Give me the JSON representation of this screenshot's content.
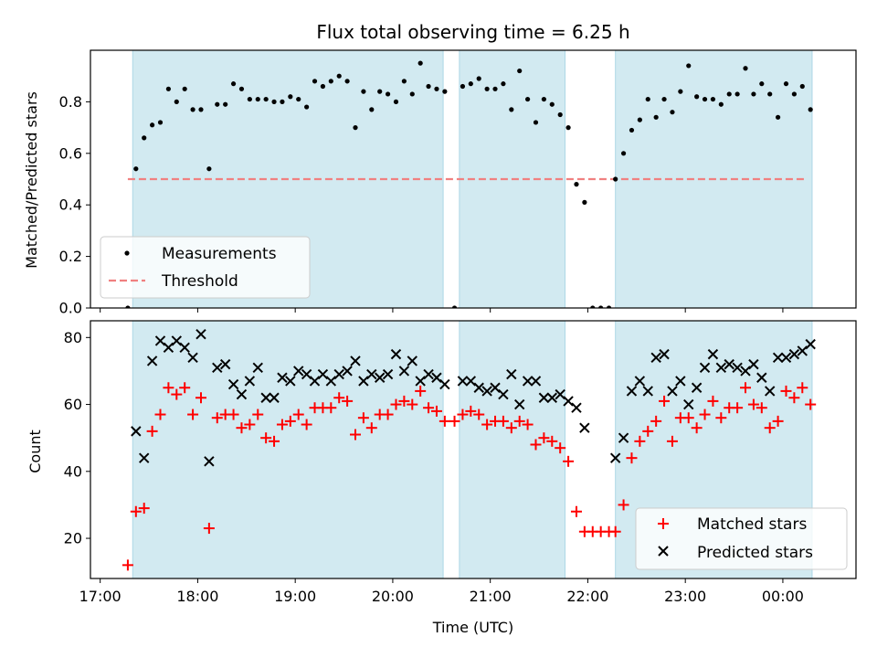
{
  "chart_data": [
    {
      "type": "scatter",
      "title": "Flux total observing time = 6.25 h",
      "xlabel": "",
      "ylabel": "Matched/Predicted stars",
      "ylim": [
        0,
        1.0
      ],
      "yticks": [
        "0.0",
        "0.2",
        "0.4",
        "0.6",
        "0.8"
      ],
      "xlim": [
        "16:54",
        "00:45"
      ],
      "grid": false,
      "legend_position": "lower-left",
      "observing_windows": [
        [
          "17:20",
          "20:31"
        ],
        [
          "20:41",
          "21:46"
        ],
        [
          "22:17",
          "00:18"
        ]
      ],
      "threshold": {
        "name": "Threshold",
        "value": 0.5,
        "x_range": [
          "17:17",
          "00:15"
        ],
        "color": "#f08080"
      },
      "series": [
        {
          "name": "Measurements",
          "color": "#000000",
          "points": [
            [
              "17:17",
              0.0
            ],
            [
              "17:22",
              0.54
            ],
            [
              "17:27",
              0.66
            ],
            [
              "17:32",
              0.71
            ],
            [
              "17:37",
              0.72
            ],
            [
              "17:42",
              0.85
            ],
            [
              "17:47",
              0.8
            ],
            [
              "17:52",
              0.85
            ],
            [
              "17:57",
              0.77
            ],
            [
              "18:02",
              0.77
            ],
            [
              "18:07",
              0.54
            ],
            [
              "18:12",
              0.79
            ],
            [
              "18:17",
              0.79
            ],
            [
              "18:22",
              0.87
            ],
            [
              "18:27",
              0.85
            ],
            [
              "18:32",
              0.81
            ],
            [
              "18:37",
              0.81
            ],
            [
              "18:42",
              0.81
            ],
            [
              "18:47",
              0.8
            ],
            [
              "18:52",
              0.8
            ],
            [
              "18:57",
              0.82
            ],
            [
              "19:02",
              0.81
            ],
            [
              "19:07",
              0.78
            ],
            [
              "19:12",
              0.88
            ],
            [
              "19:17",
              0.86
            ],
            [
              "19:22",
              0.88
            ],
            [
              "19:27",
              0.9
            ],
            [
              "19:32",
              0.88
            ],
            [
              "19:37",
              0.7
            ],
            [
              "19:42",
              0.84
            ],
            [
              "19:47",
              0.77
            ],
            [
              "19:52",
              0.84
            ],
            [
              "19:57",
              0.83
            ],
            [
              "20:02",
              0.8
            ],
            [
              "20:07",
              0.88
            ],
            [
              "20:12",
              0.83
            ],
            [
              "20:17",
              0.95
            ],
            [
              "20:22",
              0.86
            ],
            [
              "20:27",
              0.85
            ],
            [
              "20:32",
              0.84
            ],
            [
              "20:38",
              0.0
            ],
            [
              "20:43",
              0.86
            ],
            [
              "20:48",
              0.87
            ],
            [
              "20:53",
              0.89
            ],
            [
              "20:58",
              0.85
            ],
            [
              "21:03",
              0.85
            ],
            [
              "21:08",
              0.87
            ],
            [
              "21:13",
              0.77
            ],
            [
              "21:18",
              0.92
            ],
            [
              "21:23",
              0.81
            ],
            [
              "21:28",
              0.72
            ],
            [
              "21:33",
              0.81
            ],
            [
              "21:38",
              0.79
            ],
            [
              "21:43",
              0.75
            ],
            [
              "21:48",
              0.7
            ],
            [
              "21:53",
              0.48
            ],
            [
              "21:58",
              0.41
            ],
            [
              "22:03",
              0.0
            ],
            [
              "22:08",
              0.0
            ],
            [
              "22:13",
              0.0
            ],
            [
              "22:17",
              0.5
            ],
            [
              "22:22",
              0.6
            ],
            [
              "22:27",
              0.69
            ],
            [
              "22:32",
              0.73
            ],
            [
              "22:37",
              0.81
            ],
            [
              "22:42",
              0.74
            ],
            [
              "22:47",
              0.81
            ],
            [
              "22:52",
              0.76
            ],
            [
              "22:57",
              0.84
            ],
            [
              "23:02",
              0.94
            ],
            [
              "23:07",
              0.82
            ],
            [
              "23:12",
              0.81
            ],
            [
              "23:17",
              0.81
            ],
            [
              "23:22",
              0.79
            ],
            [
              "23:27",
              0.83
            ],
            [
              "23:32",
              0.83
            ],
            [
              "23:37",
              0.93
            ],
            [
              "23:42",
              0.83
            ],
            [
              "23:47",
              0.87
            ],
            [
              "23:52",
              0.83
            ],
            [
              "23:57",
              0.74
            ],
            [
              "00:02",
              0.87
            ],
            [
              "00:07",
              0.83
            ],
            [
              "00:12",
              0.86
            ],
            [
              "00:17",
              0.77
            ]
          ]
        }
      ]
    },
    {
      "type": "scatter",
      "title": "",
      "xlabel": "Time (UTC)",
      "ylabel": "Count",
      "ylim": [
        8,
        85
      ],
      "yticks": [
        "20",
        "40",
        "60",
        "80"
      ],
      "xlim": [
        "16:54",
        "00:45"
      ],
      "xticks": [
        "17:00",
        "18:00",
        "19:00",
        "20:00",
        "21:00",
        "22:00",
        "23:00",
        "00:00"
      ],
      "grid": false,
      "legend_position": "lower-right",
      "observing_windows": [
        [
          "17:20",
          "20:31"
        ],
        [
          "20:41",
          "21:46"
        ],
        [
          "22:17",
          "00:18"
        ]
      ],
      "series": [
        {
          "name": "Matched stars",
          "marker": "plus",
          "color": "#ff0000",
          "points": [
            [
              "17:17",
              12
            ],
            [
              "17:22",
              28
            ],
            [
              "17:27",
              29
            ],
            [
              "17:32",
              52
            ],
            [
              "17:37",
              57
            ],
            [
              "17:42",
              65
            ],
            [
              "17:47",
              63
            ],
            [
              "17:52",
              65
            ],
            [
              "17:57",
              57
            ],
            [
              "18:02",
              62
            ],
            [
              "18:07",
              23
            ],
            [
              "18:12",
              56
            ],
            [
              "18:17",
              57
            ],
            [
              "18:22",
              57
            ],
            [
              "18:27",
              53
            ],
            [
              "18:32",
              54
            ],
            [
              "18:37",
              57
            ],
            [
              "18:42",
              50
            ],
            [
              "18:47",
              49
            ],
            [
              "18:52",
              54
            ],
            [
              "18:57",
              55
            ],
            [
              "19:02",
              57
            ],
            [
              "19:07",
              54
            ],
            [
              "19:12",
              59
            ],
            [
              "19:17",
              59
            ],
            [
              "19:22",
              59
            ],
            [
              "19:27",
              62
            ],
            [
              "19:32",
              61
            ],
            [
              "19:37",
              51
            ],
            [
              "19:42",
              56
            ],
            [
              "19:47",
              53
            ],
            [
              "19:52",
              57
            ],
            [
              "19:57",
              57
            ],
            [
              "20:02",
              60
            ],
            [
              "20:07",
              61
            ],
            [
              "20:12",
              60
            ],
            [
              "20:17",
              64
            ],
            [
              "20:22",
              59
            ],
            [
              "20:27",
              58
            ],
            [
              "20:32",
              55
            ],
            [
              "20:38",
              55
            ],
            [
              "20:43",
              57
            ],
            [
              "20:48",
              58
            ],
            [
              "20:53",
              57
            ],
            [
              "20:58",
              54
            ],
            [
              "21:03",
              55
            ],
            [
              "21:08",
              55
            ],
            [
              "21:13",
              53
            ],
            [
              "21:18",
              55
            ],
            [
              "21:23",
              54
            ],
            [
              "21:28",
              48
            ],
            [
              "21:33",
              50
            ],
            [
              "21:38",
              49
            ],
            [
              "21:43",
              47
            ],
            [
              "21:48",
              43
            ],
            [
              "21:53",
              28
            ],
            [
              "21:58",
              22
            ],
            [
              "22:03",
              22
            ],
            [
              "22:08",
              22
            ],
            [
              "22:13",
              22
            ],
            [
              "22:17",
              22
            ],
            [
              "22:22",
              30
            ],
            [
              "22:27",
              44
            ],
            [
              "22:32",
              49
            ],
            [
              "22:37",
              52
            ],
            [
              "22:42",
              55
            ],
            [
              "22:47",
              61
            ],
            [
              "22:52",
              49
            ],
            [
              "22:57",
              56
            ],
            [
              "23:02",
              56
            ],
            [
              "23:07",
              53
            ],
            [
              "23:12",
              57
            ],
            [
              "23:17",
              61
            ],
            [
              "23:22",
              56
            ],
            [
              "23:27",
              59
            ],
            [
              "23:32",
              59
            ],
            [
              "23:37",
              65
            ],
            [
              "23:42",
              60
            ],
            [
              "23:47",
              59
            ],
            [
              "23:52",
              53
            ],
            [
              "23:57",
              55
            ],
            [
              "00:02",
              64
            ],
            [
              "00:07",
              62
            ],
            [
              "00:12",
              65
            ],
            [
              "00:17",
              60
            ]
          ]
        },
        {
          "name": "Predicted stars",
          "marker": "x",
          "color": "#000000",
          "points": [
            [
              "17:22",
              52
            ],
            [
              "17:27",
              44
            ],
            [
              "17:32",
              73
            ],
            [
              "17:37",
              79
            ],
            [
              "17:42",
              77
            ],
            [
              "17:47",
              79
            ],
            [
              "17:52",
              77
            ],
            [
              "17:57",
              74
            ],
            [
              "18:02",
              81
            ],
            [
              "18:07",
              43
            ],
            [
              "18:12",
              71
            ],
            [
              "18:17",
              72
            ],
            [
              "18:22",
              66
            ],
            [
              "18:27",
              63
            ],
            [
              "18:32",
              67
            ],
            [
              "18:37",
              71
            ],
            [
              "18:42",
              62
            ],
            [
              "18:47",
              62
            ],
            [
              "18:52",
              68
            ],
            [
              "18:57",
              67
            ],
            [
              "19:02",
              70
            ],
            [
              "19:07",
              69
            ],
            [
              "19:12",
              67
            ],
            [
              "19:17",
              69
            ],
            [
              "19:22",
              67
            ],
            [
              "19:27",
              69
            ],
            [
              "19:32",
              70
            ],
            [
              "19:37",
              73
            ],
            [
              "19:42",
              67
            ],
            [
              "19:47",
              69
            ],
            [
              "19:52",
              68
            ],
            [
              "19:57",
              69
            ],
            [
              "20:02",
              75
            ],
            [
              "20:07",
              70
            ],
            [
              "20:12",
              73
            ],
            [
              "20:17",
              67
            ],
            [
              "20:22",
              69
            ],
            [
              "20:27",
              68
            ],
            [
              "20:32",
              66
            ],
            [
              "20:43",
              67
            ],
            [
              "20:48",
              67
            ],
            [
              "20:53",
              65
            ],
            [
              "20:58",
              64
            ],
            [
              "21:03",
              65
            ],
            [
              "21:08",
              63
            ],
            [
              "21:13",
              69
            ],
            [
              "21:18",
              60
            ],
            [
              "21:23",
              67
            ],
            [
              "21:28",
              67
            ],
            [
              "21:33",
              62
            ],
            [
              "21:38",
              62
            ],
            [
              "21:43",
              63
            ],
            [
              "21:48",
              61
            ],
            [
              "21:53",
              59
            ],
            [
              "21:58",
              53
            ],
            [
              "22:17",
              44
            ],
            [
              "22:22",
              50
            ],
            [
              "22:27",
              64
            ],
            [
              "22:32",
              67
            ],
            [
              "22:37",
              64
            ],
            [
              "22:42",
              74
            ],
            [
              "22:47",
              75
            ],
            [
              "22:52",
              64
            ],
            [
              "22:57",
              67
            ],
            [
              "23:02",
              60
            ],
            [
              "23:07",
              65
            ],
            [
              "23:12",
              71
            ],
            [
              "23:17",
              75
            ],
            [
              "23:22",
              71
            ],
            [
              "23:27",
              72
            ],
            [
              "23:32",
              71
            ],
            [
              "23:37",
              70
            ],
            [
              "23:42",
              72
            ],
            [
              "23:47",
              68
            ],
            [
              "23:52",
              64
            ],
            [
              "23:57",
              74
            ],
            [
              "00:02",
              74
            ],
            [
              "00:07",
              75
            ],
            [
              "00:12",
              76
            ],
            [
              "00:17",
              78
            ]
          ]
        }
      ]
    }
  ],
  "colors": {
    "window_fill": "#add8e6",
    "frame": "#000000",
    "legend_border": "#cccccc"
  }
}
